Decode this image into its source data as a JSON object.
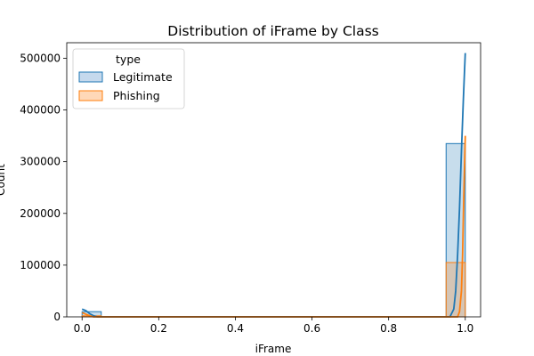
{
  "chart_data": {
    "type": "bar",
    "title": "Distribution of iFrame by Class",
    "xlabel": "iFrame",
    "ylabel": "Count",
    "xlim": [
      -0.04,
      1.04
    ],
    "ylim": [
      0,
      530000
    ],
    "xticks": [
      0.0,
      0.2,
      0.4,
      0.6,
      0.8,
      1.0
    ],
    "xtick_labels": [
      "0.0",
      "0.2",
      "0.4",
      "0.6",
      "0.8",
      "1.0"
    ],
    "yticks": [
      0,
      100000,
      200000,
      300000,
      400000,
      500000
    ],
    "ytick_labels": [
      "0",
      "100000",
      "200000",
      "300000",
      "400000",
      "500000"
    ],
    "grid": false,
    "legend": {
      "title": "type",
      "placement": "top-left",
      "entries": [
        "Legitimate",
        "Phishing"
      ]
    },
    "series": [
      {
        "name": "Legitimate",
        "color": "#1f77b4",
        "fill": "#c5d9ed",
        "bins": [
          {
            "x0": 0.0,
            "x1": 0.05,
            "count": 10000
          },
          {
            "x0": 0.95,
            "x1": 1.0,
            "count": 335000
          }
        ],
        "kde": [
          [
            0.0,
            15000
          ],
          [
            0.01,
            12000
          ],
          [
            0.02,
            6000
          ],
          [
            0.03,
            2000
          ],
          [
            0.04,
            0
          ],
          [
            0.96,
            0
          ],
          [
            0.97,
            15000
          ],
          [
            0.975,
            50000
          ],
          [
            0.98,
            120000
          ],
          [
            0.985,
            210000
          ],
          [
            0.99,
            320000
          ],
          [
            0.995,
            420000
          ],
          [
            0.998,
            475000
          ],
          [
            1.0,
            510000
          ]
        ]
      },
      {
        "name": "Phishing",
        "color": "#ff7f0e",
        "fill": "#ffd8b8",
        "bins": [
          {
            "x0": 0.0,
            "x1": 0.05,
            "count": 2000
          },
          {
            "x0": 0.95,
            "x1": 1.0,
            "count": 105000
          }
        ],
        "kde": [
          [
            0.0,
            8000
          ],
          [
            0.01,
            5000
          ],
          [
            0.02,
            2000
          ],
          [
            0.03,
            0
          ],
          [
            0.98,
            0
          ],
          [
            0.985,
            10000
          ],
          [
            0.99,
            50000
          ],
          [
            0.993,
            120000
          ],
          [
            0.996,
            230000
          ],
          [
            1.0,
            350000
          ]
        ]
      }
    ]
  }
}
